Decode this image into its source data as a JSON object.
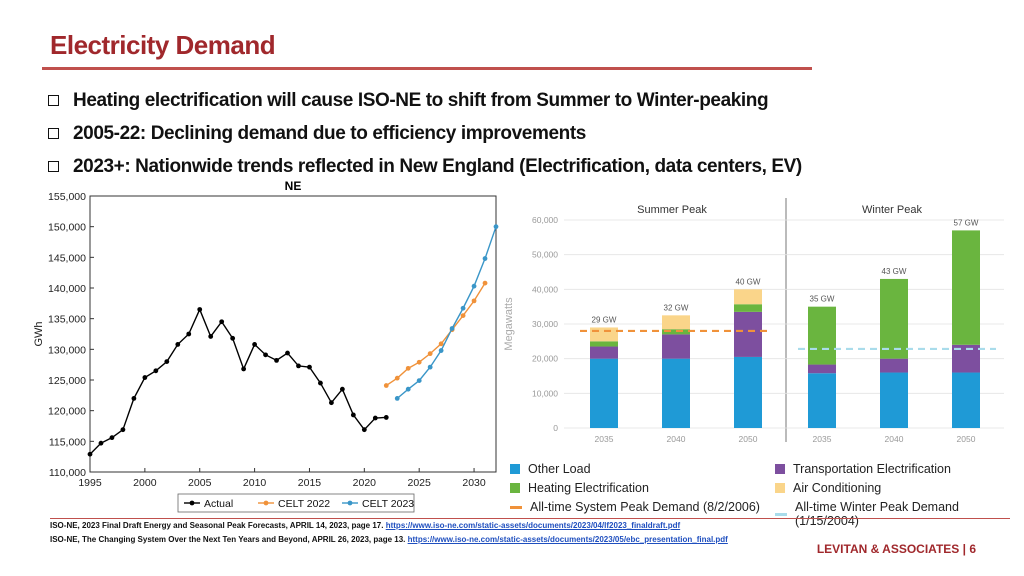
{
  "slide": {
    "title": "Electricity Demand",
    "bullets": [
      "Heating electrification will cause ISO-NE to shift from Summer to Winter-peaking",
      "2005-22: Declining demand due to efficiency improvements",
      "2023+:  Nationwide trends reflected in New England (Electrification, data centers, EV)"
    ],
    "sources": [
      {
        "text": "ISO-NE, 2023 Final Draft Energy and Seasonal Peak Forecasts, APRIL 14, 2023, page 17.",
        "link": "https://www.iso-ne.com/static-assets/documents/2023/04/lf2023_finaldraft.pdf"
      },
      {
        "text": "ISO-NE, The Changing System Over the Next Ten Years and Beyond, APRIL 26, 2023, page 13.",
        "link": "https://www.iso-ne.com/static-assets/documents/2023/05/ebc_presentation_final.pdf"
      }
    ],
    "footer": "LEVITAN & ASSOCIATES | 6",
    "colors": {
      "title": "#a0282c",
      "rule": "#c0504d",
      "link": "#1f4fbf"
    }
  },
  "chart_data": [
    {
      "type": "line",
      "title": "NE",
      "ylabel": "GWh",
      "xlim": [
        1995,
        2032
      ],
      "ylim": [
        110000,
        155000
      ],
      "xticks": [
        "1995",
        "2000",
        "2005",
        "2010",
        "2015",
        "2020",
        "2025",
        "2030"
      ],
      "yticks": [
        "110,000",
        "115,000",
        "120,000",
        "125,000",
        "130,000",
        "135,000",
        "140,000",
        "145,000",
        "150,000",
        "155,000"
      ],
      "legend": "bottom",
      "grid": false,
      "series": [
        {
          "name": "Actual",
          "color": "#000000",
          "x": [
            1995,
            1996,
            1997,
            1998,
            1999,
            2000,
            2001,
            2002,
            2003,
            2004,
            2005,
            2006,
            2007,
            2008,
            2009,
            2010,
            2011,
            2012,
            2013,
            2014,
            2015,
            2016,
            2017,
            2018,
            2019,
            2020,
            2021,
            2022
          ],
          "y": [
            112900,
            114700,
            115600,
            116900,
            122000,
            125400,
            126500,
            128000,
            130800,
            132500,
            136500,
            132100,
            134500,
            131800,
            126800,
            130800,
            129100,
            128200,
            129400,
            127300,
            127100,
            124500,
            121300,
            123500,
            119300,
            116900,
            118800,
            118900
          ]
        },
        {
          "name": "CELT 2022",
          "color": "#f0923a",
          "x": [
            2022,
            2023,
            2024,
            2025,
            2026,
            2027,
            2028,
            2029,
            2030,
            2031
          ],
          "y": [
            124100,
            125300,
            126900,
            127900,
            129300,
            130900,
            133200,
            135500,
            137900,
            140800
          ]
        },
        {
          "name": "CELT 2023",
          "color": "#3a96c8",
          "x": [
            2023,
            2024,
            2025,
            2026,
            2027,
            2028,
            2029,
            2030,
            2031,
            2032
          ],
          "y": [
            122000,
            123500,
            124900,
            127100,
            129800,
            133400,
            136700,
            140300,
            144800,
            150000
          ]
        }
      ]
    },
    {
      "type": "bar",
      "stacked": true,
      "ylabel": "Megawatts",
      "ylim": [
        0,
        60000
      ],
      "yticks": [
        "0",
        "10,000",
        "20,000",
        "30,000",
        "40,000",
        "50,000",
        "60,000"
      ],
      "panels": [
        {
          "title": "Summer Peak",
          "categories": [
            "2035",
            "2040",
            "2050"
          ],
          "totals": [
            "29 GW",
            "32 GW",
            "40 GW"
          ],
          "reference": {
            "name": "All-time System Peak Demand (8/2/2006)",
            "value": 28000,
            "color": "#f0923a"
          }
        },
        {
          "title": "Winter Peak",
          "categories": [
            "2035",
            "2040",
            "2050"
          ],
          "totals": [
            "35 GW",
            "43 GW",
            "57 GW"
          ],
          "reference": {
            "name": "All-time Winter Peak Demand (1/15/2004)",
            "value": 22800,
            "color": "#a9dceb"
          }
        }
      ],
      "series": [
        {
          "name": "Other Load",
          "color": "#1f9ad6",
          "summer": [
            20000,
            20000,
            20500
          ],
          "winter": [
            15800,
            16000,
            16000
          ]
        },
        {
          "name": "Transportation Electrification",
          "color": "#7d4f9f",
          "summer": [
            3500,
            7000,
            13000
          ],
          "winter": [
            2500,
            4000,
            8000
          ]
        },
        {
          "name": "Heating Electrification",
          "color": "#6ab53f",
          "summer": [
            1500,
            1500,
            2200
          ],
          "winter": [
            16700,
            23000,
            33000
          ]
        },
        {
          "name": "Air Conditioning",
          "color": "#fad58a",
          "summer": [
            4000,
            4000,
            4300
          ],
          "winter": [
            0,
            0,
            0
          ]
        }
      ]
    }
  ]
}
